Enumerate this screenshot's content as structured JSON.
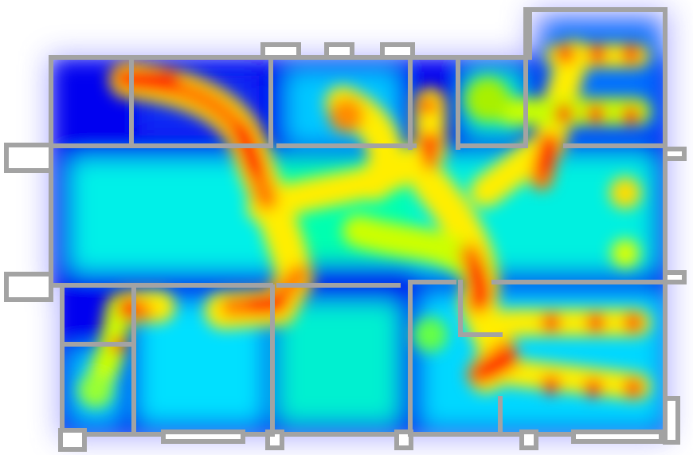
{
  "heatmap": {
    "kind": "floor-plan-occupancy-heatmap",
    "palette": [
      "#0000ff",
      "#00ffff",
      "#00ff66",
      "#ffff00",
      "#ff8800",
      "#ff0000"
    ],
    "wall_color": "#a3a3a3",
    "background_color": "#ffffff",
    "rooms": [
      "room-top-left",
      "room-top-center",
      "room-top-right-small",
      "room-top-right-corner",
      "room-left-large",
      "room-right-center",
      "room-bottom-left-closet",
      "room-bottom-left",
      "room-bottom-center",
      "room-bottom-right"
    ],
    "hotspot_intensity": {
      "low": 0.35,
      "medium": 0.6,
      "high": 1.0
    }
  }
}
